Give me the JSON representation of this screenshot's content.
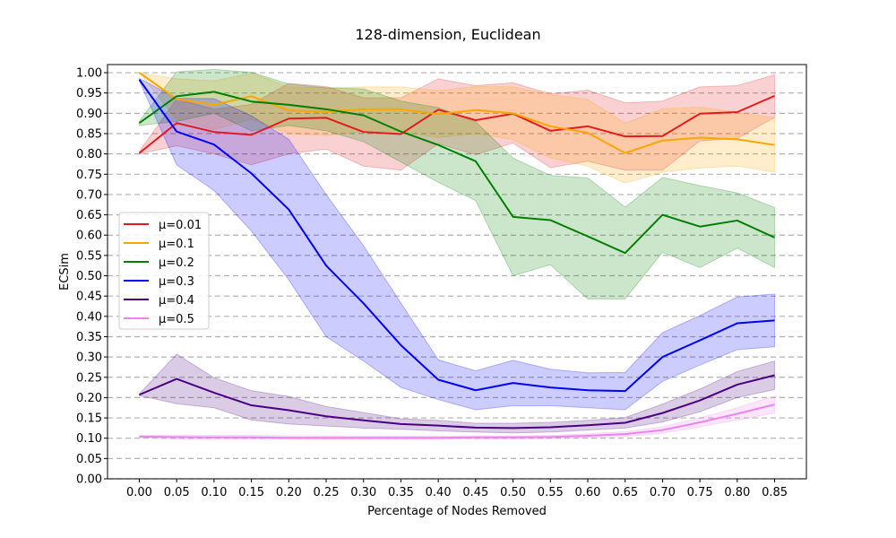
{
  "chart_data": {
    "type": "line",
    "title": "128-dimension, Euclidean",
    "xlabel": "Percentage of Nodes Removed",
    "ylabel": "ECSim",
    "x": [
      0.0,
      0.05,
      0.1,
      0.15,
      0.2,
      0.25,
      0.3,
      0.35,
      0.4,
      0.45,
      0.5,
      0.55,
      0.6,
      0.65,
      0.7,
      0.75,
      0.8,
      0.85
    ],
    "x_tick_labels": [
      "0.00",
      "0.05",
      "0.10",
      "0.15",
      "0.20",
      "0.25",
      "0.30",
      "0.35",
      "0.40",
      "0.45",
      "0.50",
      "0.55",
      "0.60",
      "0.65",
      "0.70",
      "0.75",
      "0.80",
      "0.85"
    ],
    "y_tick_labels": [
      "0.00",
      "0.05",
      "0.10",
      "0.15",
      "0.20",
      "0.25",
      "0.30",
      "0.35",
      "0.40",
      "0.45",
      "0.50",
      "0.55",
      "0.60",
      "0.65",
      "0.70",
      "0.75",
      "0.80",
      "0.85",
      "0.90",
      "0.95",
      "1.00"
    ],
    "xlim": [
      -0.0425,
      0.8925
    ],
    "ylim": [
      0.0,
      1.02
    ],
    "grid": "horizontal-dashed",
    "legend_position": "center-left",
    "series": [
      {
        "name": "μ=0.01",
        "color": "#e41a1c",
        "values": [
          0.802,
          0.876,
          0.854,
          0.847,
          0.887,
          0.889,
          0.854,
          0.849,
          0.909,
          0.883,
          0.899,
          0.857,
          0.868,
          0.843,
          0.844,
          0.899,
          0.903,
          0.943
        ],
        "lower": [
          0.8,
          0.82,
          0.8,
          0.773,
          0.8,
          0.812,
          0.77,
          0.76,
          0.825,
          0.798,
          0.827,
          0.766,
          0.782,
          0.76,
          0.76,
          0.832,
          0.838,
          0.89
        ],
        "upper": [
          0.806,
          0.935,
          0.91,
          0.922,
          0.974,
          0.966,
          0.938,
          0.938,
          0.985,
          0.968,
          0.975,
          0.948,
          0.957,
          0.926,
          0.93,
          0.965,
          0.968,
          0.995
        ]
      },
      {
        "name": "μ=0.1",
        "color": "#ffa500",
        "values": [
          1.0,
          0.935,
          0.921,
          0.942,
          0.907,
          0.904,
          0.91,
          0.91,
          0.898,
          0.908,
          0.9,
          0.868,
          0.852,
          0.802,
          0.833,
          0.84,
          0.836,
          0.822
        ],
        "lower": [
          1.0,
          0.885,
          0.86,
          0.885,
          0.85,
          0.845,
          0.855,
          0.855,
          0.84,
          0.85,
          0.835,
          0.79,
          0.77,
          0.728,
          0.755,
          0.765,
          0.77,
          0.755
        ],
        "upper": [
          1.0,
          0.985,
          0.98,
          0.999,
          0.965,
          0.963,
          0.965,
          0.965,
          0.956,
          0.966,
          0.965,
          0.946,
          0.934,
          0.876,
          0.911,
          0.915,
          0.902,
          0.889
        ]
      },
      {
        "name": "μ=0.2",
        "color": "#008000",
        "values": [
          0.876,
          0.942,
          0.953,
          0.929,
          0.921,
          0.91,
          0.895,
          0.855,
          0.822,
          0.782,
          0.645,
          0.637,
          0.597,
          0.556,
          0.65,
          0.621,
          0.636,
          0.594
        ],
        "lower": [
          0.87,
          0.88,
          0.9,
          0.857,
          0.87,
          0.857,
          0.83,
          0.78,
          0.73,
          0.685,
          0.5,
          0.527,
          0.443,
          0.443,
          0.558,
          0.52,
          0.568,
          0.52
        ],
        "upper": [
          0.88,
          1.002,
          1.008,
          1.001,
          0.972,
          0.963,
          0.96,
          0.93,
          0.914,
          0.879,
          0.79,
          0.747,
          0.741,
          0.669,
          0.742,
          0.722,
          0.704,
          0.668
        ]
      },
      {
        "name": "μ=0.3",
        "color": "#0000ff",
        "values": [
          0.983,
          0.855,
          0.823,
          0.752,
          0.663,
          0.525,
          0.432,
          0.329,
          0.244,
          0.218,
          0.236,
          0.225,
          0.218,
          0.216,
          0.3,
          0.341,
          0.383,
          0.39
        ],
        "lower": [
          0.98,
          0.773,
          0.71,
          0.61,
          0.49,
          0.35,
          0.29,
          0.225,
          0.195,
          0.17,
          0.18,
          0.18,
          0.175,
          0.17,
          0.24,
          0.28,
          0.318,
          0.325
        ],
        "upper": [
          0.986,
          0.937,
          0.936,
          0.894,
          0.836,
          0.7,
          0.574,
          0.433,
          0.293,
          0.266,
          0.292,
          0.27,
          0.261,
          0.262,
          0.36,
          0.402,
          0.448,
          0.455
        ]
      },
      {
        "name": "μ=0.4",
        "color": "#4b0082",
        "values": [
          0.207,
          0.246,
          0.212,
          0.181,
          0.169,
          0.154,
          0.144,
          0.135,
          0.131,
          0.126,
          0.125,
          0.127,
          0.132,
          0.138,
          0.162,
          0.193,
          0.232,
          0.255
        ],
        "lower": [
          0.205,
          0.185,
          0.175,
          0.145,
          0.135,
          0.13,
          0.125,
          0.122,
          0.118,
          0.115,
          0.113,
          0.115,
          0.12,
          0.125,
          0.14,
          0.165,
          0.2,
          0.22
        ],
        "upper": [
          0.209,
          0.307,
          0.249,
          0.217,
          0.203,
          0.178,
          0.163,
          0.148,
          0.144,
          0.137,
          0.137,
          0.139,
          0.144,
          0.151,
          0.184,
          0.221,
          0.264,
          0.29
        ]
      },
      {
        "name": "μ=0.5",
        "color": "#ee82ee",
        "values": [
          0.104,
          0.103,
          0.102,
          0.102,
          0.101,
          0.101,
          0.101,
          0.101,
          0.101,
          0.102,
          0.102,
          0.103,
          0.106,
          0.11,
          0.12,
          0.139,
          0.16,
          0.183
        ],
        "lower": [
          0.101,
          0.098,
          0.097,
          0.097,
          0.097,
          0.097,
          0.097,
          0.097,
          0.097,
          0.098,
          0.098,
          0.099,
          0.101,
          0.104,
          0.112,
          0.128,
          0.145,
          0.162
        ],
        "upper": [
          0.107,
          0.108,
          0.107,
          0.107,
          0.106,
          0.106,
          0.105,
          0.105,
          0.105,
          0.106,
          0.106,
          0.107,
          0.111,
          0.116,
          0.128,
          0.15,
          0.175,
          0.204
        ]
      }
    ]
  }
}
